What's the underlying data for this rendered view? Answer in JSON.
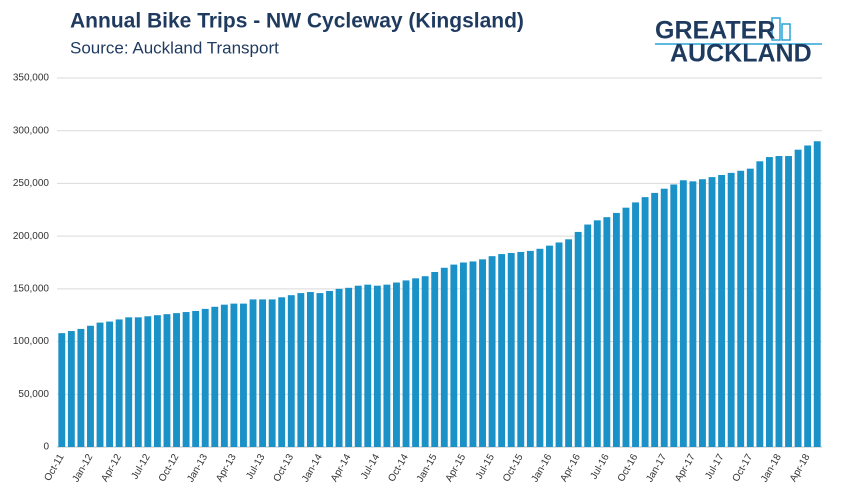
{
  "chart_data": {
    "type": "bar",
    "title": "Annual Bike Trips - NW Cycleway (Kingsland)",
    "subtitle": "Source: Auckland Transport",
    "logo": [
      "GREATER",
      "AUCKLAND"
    ],
    "color": "#1a92c8",
    "grid": true,
    "categories": [
      "Oct-11",
      null,
      null,
      "Jan-12",
      null,
      null,
      "Apr-12",
      null,
      null,
      "Jul-12",
      null,
      null,
      "Oct-12",
      null,
      null,
      "Jan-13",
      null,
      null,
      "Apr-13",
      null,
      null,
      "Jul-13",
      null,
      null,
      "Oct-13",
      null,
      null,
      "Jan-14",
      null,
      null,
      "Apr-14",
      null,
      null,
      "Jul-14",
      null,
      null,
      "Oct-14",
      null,
      null,
      "Jan-15",
      null,
      null,
      "Apr-15",
      null,
      null,
      "Jul-15",
      null,
      null,
      "Oct-15",
      null,
      null,
      "Jan-16",
      null,
      null,
      "Apr-16",
      null,
      null,
      "Jul-16",
      null,
      null,
      "Oct-16",
      null,
      null,
      "Jan-17",
      null,
      null,
      "Apr-17",
      null,
      null,
      "Jul-17",
      null,
      null,
      "Oct-17",
      null,
      null,
      "Jan-18",
      null,
      null,
      "Apr-18",
      null
    ],
    "values": [
      108000,
      110000,
      112000,
      115000,
      118000,
      119000,
      121000,
      123000,
      123000,
      124000,
      125000,
      126000,
      127000,
      128000,
      129000,
      131000,
      133000,
      135000,
      136000,
      136000,
      140000,
      140000,
      140000,
      142000,
      144000,
      146000,
      147000,
      146000,
      148000,
      150000,
      151000,
      153000,
      154000,
      153000,
      154000,
      156000,
      158000,
      160000,
      162000,
      166000,
      170000,
      173000,
      175000,
      176000,
      178000,
      181000,
      183000,
      184000,
      185000,
      186000,
      188000,
      191000,
      194000,
      197000,
      204000,
      211000,
      215000,
      218000,
      222000,
      227000,
      232000,
      237000,
      241000,
      245000,
      249000,
      253000,
      252000,
      254000,
      256000,
      258000,
      260000,
      262000,
      264000,
      271000,
      275000,
      276000,
      276000,
      282000,
      286000,
      290000
    ],
    "ylim": [
      0,
      350000
    ],
    "yticks": [
      0,
      {
        "value": 50000,
        "label": "50,000"
      },
      {
        "value": 100000,
        "label": "100,000"
      },
      {
        "value": 150000,
        "label": "150,000"
      },
      {
        "value": 200000,
        "label": "200,000"
      },
      {
        "value": 250000,
        "label": "250,000"
      },
      {
        "value": 300000,
        "label": "300,000"
      },
      {
        "value": 350000,
        "label": "350,000"
      }
    ]
  }
}
